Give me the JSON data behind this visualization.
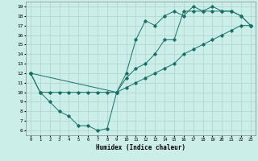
{
  "xlabel": "Humidex (Indice chaleur)",
  "background_color": "#cceee8",
  "grid_color": "#aad4cc",
  "line_color": "#1a7068",
  "xlim": [
    -0.5,
    23.5
  ],
  "ylim": [
    5.5,
    19.5
  ],
  "yticks": [
    6,
    7,
    8,
    9,
    10,
    11,
    12,
    13,
    14,
    15,
    16,
    17,
    18,
    19
  ],
  "xticks": [
    0,
    1,
    2,
    3,
    4,
    5,
    6,
    7,
    8,
    9,
    10,
    11,
    12,
    13,
    14,
    15,
    16,
    17,
    18,
    19,
    20,
    21,
    22,
    23
  ],
  "line1_x": [
    0,
    1,
    2,
    3,
    4,
    5,
    6,
    7,
    8,
    9,
    10,
    11,
    12,
    13,
    14,
    15,
    16,
    17,
    18,
    19,
    20,
    21,
    22,
    23
  ],
  "line1_y": [
    12,
    10,
    9,
    8,
    7.5,
    6.5,
    6.5,
    6.0,
    6.2,
    10,
    11.5,
    12.5,
    13,
    14,
    15.5,
    15.5,
    18.5,
    18.5,
    18.5,
    19,
    18.5,
    18.5,
    18,
    17
  ],
  "line2_x": [
    0,
    1,
    2,
    3,
    4,
    5,
    6,
    7,
    8,
    9,
    10,
    11,
    12,
    13,
    14,
    15,
    16,
    17,
    18,
    19,
    20,
    21,
    22,
    23
  ],
  "line2_y": [
    12,
    10,
    10,
    10,
    10,
    10,
    10,
    10,
    10,
    10,
    10.5,
    11,
    11.5,
    12,
    12.5,
    13,
    14,
    14.5,
    15,
    15.5,
    16,
    16.5,
    17,
    17
  ],
  "line3_x": [
    0,
    9,
    10,
    11,
    12,
    13,
    14,
    15,
    16,
    17,
    18,
    19,
    20,
    21,
    22,
    23
  ],
  "line3_y": [
    12,
    10,
    12,
    15.5,
    17.5,
    17,
    18,
    18.5,
    18,
    19,
    18.5,
    18.5,
    18.5,
    18.5,
    18,
    17
  ]
}
